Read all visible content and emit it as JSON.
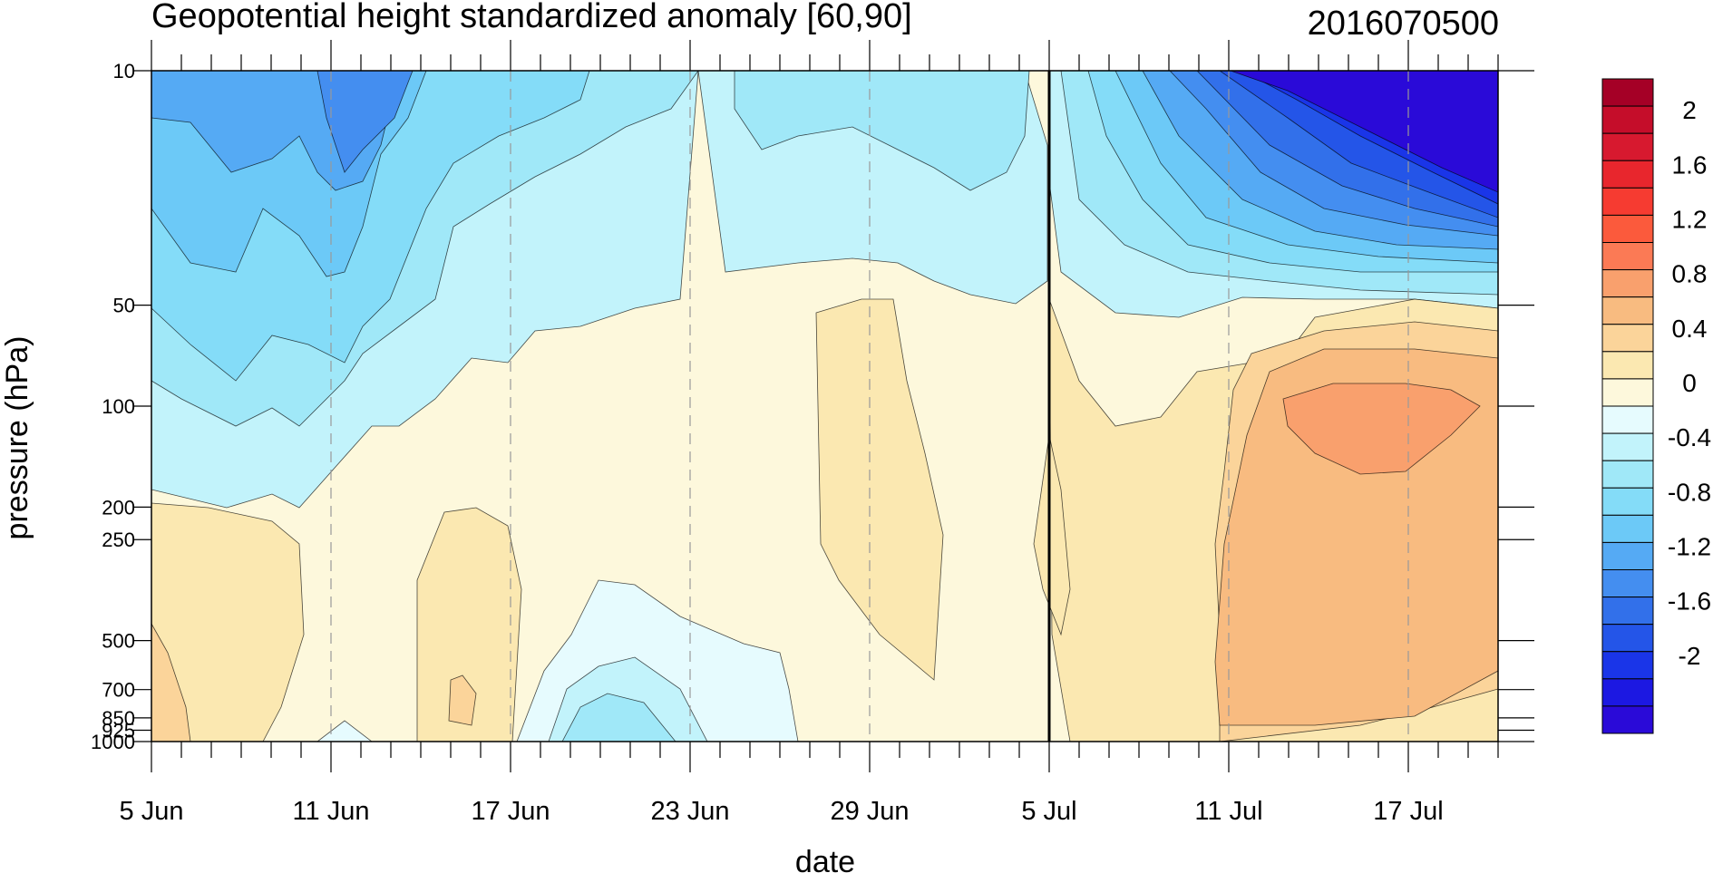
{
  "chart_data": {
    "type": "heatmap",
    "title": "Geopotential height standardized anomaly [60,90]",
    "date_label": "2016070500",
    "xlabel": "date",
    "ylabel": "pressure (hPa)",
    "x_ticks": [
      "5 Jun",
      "11 Jun",
      "17 Jun",
      "23 Jun",
      "29 Jun",
      "5 Jul",
      "11 Jul",
      "17 Jul"
    ],
    "x_range": [
      "5 Jun",
      "20 Jul"
    ],
    "y_scale": "log",
    "y_ticks": [
      "10",
      "50",
      "100",
      "200",
      "250",
      "500",
      "700",
      "850",
      "925",
      "1000"
    ],
    "y_range": [
      1000,
      10
    ],
    "marker_line_date": "5 Jul",
    "colorbar": {
      "labels": [
        "2",
        "1.6",
        "1.2",
        "0.8",
        "0.4",
        "0",
        "-0.4",
        "-0.8",
        "-1.2",
        "-1.6",
        "-2"
      ],
      "levels_top_to_bottom": [
        ">2.2",
        "2.2",
        "2.0",
        "1.8",
        "1.6",
        "1.4",
        "1.2",
        "1.0",
        "0.8",
        "0.6",
        "0.4",
        "0.2",
        "0",
        "-0.2",
        "-0.4",
        "-0.6",
        "-0.8",
        "-1.0",
        "-1.2",
        "-1.4",
        "-1.6",
        "-1.8",
        "-2.0",
        "<-2.2"
      ],
      "colors": [
        "#a50026",
        "#c50d2a",
        "#d7192f",
        "#e8262d",
        "#f63b31",
        "#fb5a3c",
        "#fb7a55",
        "#f9a06d",
        "#f8bb80",
        "#fbd49a",
        "#fbe8b1",
        "#fdf8dc",
        "#e6fbfe",
        "#c2f3fb",
        "#a0e8f8",
        "#84dcf8",
        "#6cc9f7",
        "#55aaf4",
        "#448ef0",
        "#3270ea",
        "#2455e8",
        "#1a35e8",
        "#1c18e2",
        "#2a0ad8"
      ]
    },
    "anomaly_features": [
      {
        "region": "stratosphere 10-50 hPa, 11 Jul - 20 Jul",
        "value": -2.0
      },
      {
        "region": "near 100 hPa, 13 Jul - 19 Jul",
        "value": 0.9
      },
      {
        "region": "upper levels 10-50 hPa, 5 Jun - 13 Jun",
        "value": -1.2
      },
      {
        "region": "lower levels 500-1000 hPa, 5 Jun",
        "value": 0.6
      }
    ]
  },
  "colors": {
    "background": "#ffffff",
    "contour_line": "#000000"
  }
}
